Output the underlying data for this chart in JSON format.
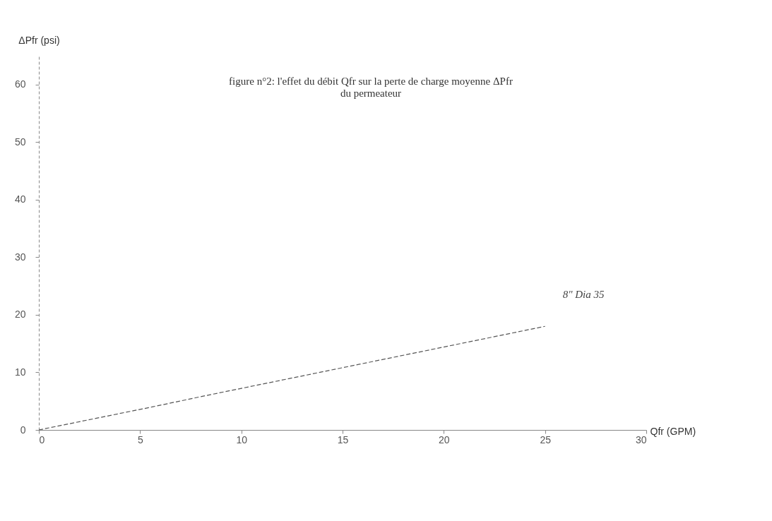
{
  "chart_data": {
    "type": "line",
    "title": [
      "figure n°2: l'effet du débit Qfr sur la perte de charge moyenne ΔPfr",
      "du permeateur"
    ],
    "xlabel": "Qfr (GPM)",
    "ylabel": "ΔPfr (psi)",
    "x": [
      0,
      5.6,
      8.3,
      12.2,
      25
    ],
    "series": [
      {
        "color": "#555555",
        "values": [
          0,
          4,
          6,
          8.8,
          18
        ]
      }
    ],
    "xlim": [
      0,
      30
    ],
    "xticks": [
      0,
      5,
      10,
      15,
      20,
      25,
      30
    ],
    "ylim": [
      0,
      65
    ],
    "yticks": [
      0,
      10,
      20,
      30,
      40,
      50,
      60
    ],
    "annotations": [
      {
        "text": "8\" Dia 35",
        "x": 25,
        "y": 18
      }
    ],
    "grid": false,
    "legend": false,
    "marker": "none",
    "line_style": "dashed"
  }
}
